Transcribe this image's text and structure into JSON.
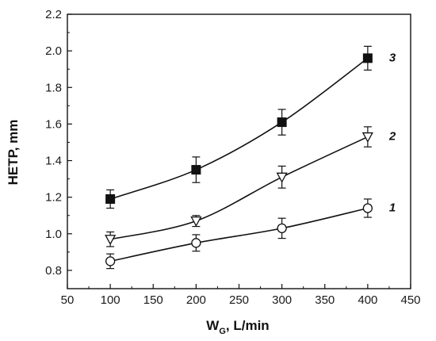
{
  "chart_data": {
    "type": "scatter",
    "xlabel": "W",
    "xlabel_sub": "G",
    "xlabel_suffix": ", L/min",
    "ylabel": "HETP, mm",
    "xlim": [
      50,
      450
    ],
    "ylim": [
      0.7,
      2.2
    ],
    "xticks": [
      50,
      100,
      150,
      200,
      250,
      300,
      350,
      400,
      450
    ],
    "yticks": [
      0.8,
      1.0,
      1.2,
      1.4,
      1.6,
      1.8,
      2.0,
      2.2
    ],
    "grid": false,
    "series": [
      {
        "name": "1",
        "marker": "open-circle",
        "x": [
          100,
          200,
          300,
          400
        ],
        "y": [
          0.85,
          0.95,
          1.03,
          1.14
        ],
        "err": [
          0.04,
          0.045,
          0.055,
          0.05
        ]
      },
      {
        "name": "2",
        "marker": "open-triangle-down",
        "x": [
          100,
          200,
          300,
          400
        ],
        "y": [
          0.97,
          1.07,
          1.31,
          1.53
        ],
        "err": [
          0.04,
          0.03,
          0.06,
          0.055
        ]
      },
      {
        "name": "3",
        "marker": "filled-square",
        "x": [
          100,
          200,
          300,
          400
        ],
        "y": [
          1.19,
          1.35,
          1.61,
          1.96
        ],
        "err": [
          0.05,
          0.07,
          0.07,
          0.065
        ]
      }
    ],
    "colors": {
      "line": "#111111",
      "marker_fill": "#111111",
      "open_fill": "#ffffff"
    }
  }
}
